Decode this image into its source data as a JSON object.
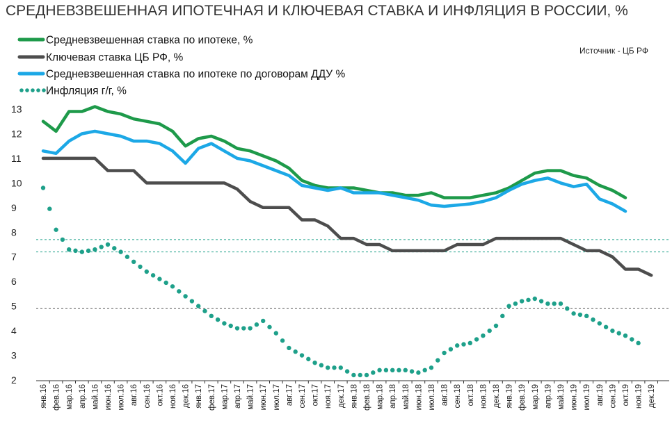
{
  "title": "СРЕДНЕВЗВЕШЕННАЯ ИПОТЕЧНАЯ  И КЛЮЧЕВАЯ СТАВКА И ИНФЛЯЦИЯ В РОССИИ, %",
  "source": "Источник  - ЦБ РФ",
  "chart_data": {
    "type": "line",
    "title": "СРЕДНЕВЗВЕШЕННАЯ ИПОТЕЧНАЯ  И КЛЮЧЕВАЯ СТАВКА И ИНФЛЯЦИЯ В РОССИИ, %",
    "xlabel": "",
    "ylabel": "",
    "ylim": [
      2,
      13
    ],
    "yticks": [
      "2",
      "3",
      "4",
      "5",
      "6",
      "7",
      "8",
      "9",
      "10",
      "11",
      "12",
      "13"
    ],
    "grid": false,
    "legend_position": "top-left",
    "x": [
      "янв.16",
      "фев.16",
      "мар.16",
      "апр.16",
      "май.16",
      "июн.16",
      "июл.16",
      "авг.16",
      "сен.16",
      "окт.16",
      "ноя.16",
      "дек.16",
      "янв.17",
      "фев.17",
      "мар.17",
      "апр.17",
      "май.17",
      "июн.17",
      "июл.17",
      "авг.17",
      "сен.17",
      "окт.17",
      "ноя.17",
      "дек.17",
      "янв.18",
      "фев.18",
      "мар.18",
      "апр.18",
      "май.18",
      "июн.18",
      "июл.18",
      "авг.18",
      "сен.18",
      "окт.18",
      "ноя.18",
      "дек.18",
      "янв.19",
      "фев.19",
      "мар.19",
      "апр.19",
      "май.19",
      "июн.19",
      "июл.19",
      "авг.19",
      "сен.19",
      "окт.19",
      "ноя.19",
      "дек.19"
    ],
    "series": [
      {
        "name": "Средневзвешенная ставка по ипотеке, %",
        "color": "#1e9a4a",
        "style": "solid",
        "values": [
          12.5,
          12.1,
          12.9,
          12.9,
          13.1,
          12.9,
          12.8,
          12.6,
          12.5,
          12.4,
          12.1,
          11.5,
          11.8,
          11.9,
          11.7,
          11.4,
          11.3,
          11.1,
          10.9,
          10.6,
          10.1,
          9.9,
          9.8,
          9.8,
          9.8,
          9.7,
          9.6,
          9.6,
          9.5,
          9.5,
          9.6,
          9.4,
          9.4,
          9.4,
          9.5,
          9.6,
          9.8,
          10.1,
          10.4,
          10.5,
          10.5,
          10.3,
          10.2,
          9.9,
          9.7,
          9.4,
          null,
          null
        ]
      },
      {
        "name": "Ключевая ставка ЦБ РФ, %",
        "color": "#4d4d4d",
        "style": "solid",
        "values": [
          11,
          11,
          11,
          11,
          11,
          10.5,
          10.5,
          10.5,
          10,
          10,
          10,
          10,
          10,
          10,
          10,
          9.75,
          9.25,
          9,
          9,
          9,
          8.5,
          8.5,
          8.25,
          7.75,
          7.75,
          7.5,
          7.5,
          7.25,
          7.25,
          7.25,
          7.25,
          7.25,
          7.5,
          7.5,
          7.5,
          7.75,
          7.75,
          7.75,
          7.75,
          7.75,
          7.75,
          7.5,
          7.25,
          7.25,
          7,
          6.5,
          6.5,
          6.25
        ]
      },
      {
        "name": "Средневзвешенная ставка по ипотеке по договорам ДДУ %",
        "color": "#1ca8e6",
        "style": "solid",
        "values": [
          11.3,
          11.2,
          11.7,
          12.0,
          12.1,
          12.0,
          11.9,
          11.7,
          11.7,
          11.6,
          11.3,
          10.8,
          11.4,
          11.6,
          11.3,
          11.0,
          10.9,
          10.7,
          10.5,
          10.3,
          9.9,
          9.8,
          9.7,
          9.8,
          9.6,
          9.6,
          9.6,
          9.5,
          9.4,
          9.3,
          9.1,
          9.05,
          9.1,
          9.15,
          9.25,
          9.4,
          9.7,
          9.95,
          10.1,
          10.2,
          10.0,
          9.85,
          9.95,
          9.35,
          9.15,
          8.85,
          null,
          null
        ]
      },
      {
        "name": "Инфляция г/г,  %",
        "color": "#1ea08a",
        "style": "dotted",
        "values": [
          9.8,
          8.1,
          7.3,
          7.2,
          7.3,
          7.5,
          7.2,
          6.8,
          6.4,
          6.1,
          5.8,
          5.4,
          5.0,
          4.6,
          4.3,
          4.1,
          4.1,
          4.4,
          3.9,
          3.3,
          3.0,
          2.7,
          2.5,
          2.5,
          2.2,
          2.2,
          2.4,
          2.4,
          2.4,
          2.3,
          2.5,
          3.1,
          3.4,
          3.5,
          3.8,
          4.2,
          5.0,
          5.2,
          5.3,
          5.1,
          5.1,
          4.7,
          4.6,
          4.3,
          4.0,
          3.8,
          3.5,
          null
        ]
      }
    ],
    "reference_lines": [
      {
        "value": 7.7,
        "color": "#1ea08a",
        "style": "dashed"
      },
      {
        "value": 7.2,
        "color": "#1ea08a",
        "style": "dashed"
      },
      {
        "value": 4.9,
        "color": "#555555",
        "style": "dashed"
      }
    ]
  }
}
